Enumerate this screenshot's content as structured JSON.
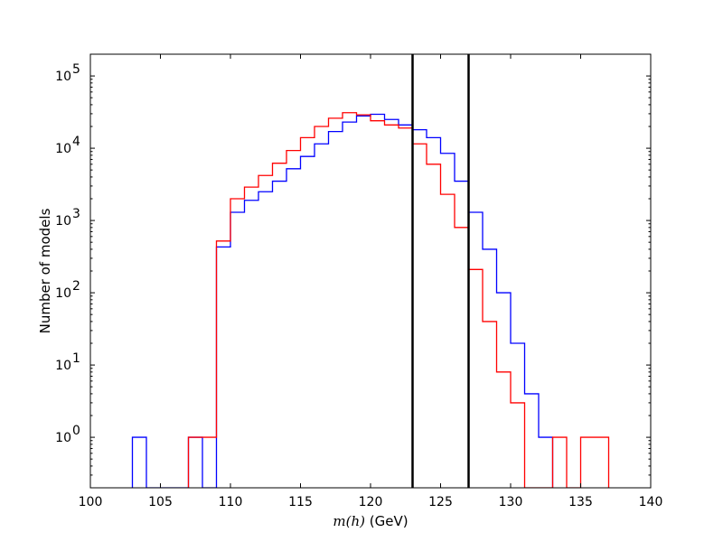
{
  "chart_data": {
    "type": "histogram",
    "xlabel_math": "m(h)",
    "xlabel_unit": " (GeV)",
    "ylabel": "Number of models",
    "xlim": [
      100,
      140
    ],
    "ylim": [
      0.2,
      200000
    ],
    "yscale": "log",
    "grid": false,
    "x_ticks": [
      100,
      105,
      110,
      115,
      120,
      125,
      130,
      135,
      140
    ],
    "y_ticks": [
      {
        "value": 1,
        "base": "10",
        "exp": "0"
      },
      {
        "value": 10,
        "base": "10",
        "exp": "1"
      },
      {
        "value": 100,
        "base": "10",
        "exp": "2"
      },
      {
        "value": 1000,
        "base": "10",
        "exp": "3"
      },
      {
        "value": 10000,
        "base": "10",
        "exp": "4"
      },
      {
        "value": 100000,
        "base": "10",
        "exp": "5"
      }
    ],
    "vlines": [
      123,
      127
    ],
    "series": [
      {
        "color": "#0000ff",
        "bins": [
          [
            103,
            104,
            1
          ],
          [
            104,
            107,
            0
          ],
          [
            107,
            108,
            1
          ],
          [
            108,
            109,
            0
          ],
          [
            109,
            110,
            430
          ],
          [
            110,
            111,
            1300
          ],
          [
            111,
            112,
            1900
          ],
          [
            112,
            113,
            2500
          ],
          [
            113,
            114,
            3500
          ],
          [
            114,
            115,
            5200
          ],
          [
            115,
            116,
            7700
          ],
          [
            116,
            117,
            11500
          ],
          [
            117,
            118,
            17000
          ],
          [
            118,
            119,
            23000
          ],
          [
            119,
            120,
            28000
          ],
          [
            120,
            121,
            29500
          ],
          [
            121,
            122,
            25000
          ],
          [
            122,
            123,
            21000
          ],
          [
            123,
            124,
            18000
          ],
          [
            124,
            125,
            14000
          ],
          [
            125,
            126,
            8500
          ],
          [
            126,
            127,
            3500
          ],
          [
            127,
            128,
            1300
          ],
          [
            128,
            129,
            400
          ],
          [
            129,
            130,
            100
          ],
          [
            130,
            131,
            20
          ],
          [
            131,
            132,
            4
          ],
          [
            132,
            133,
            1
          ]
        ]
      },
      {
        "color": "#ff0000",
        "bins": [
          [
            107,
            109,
            1
          ],
          [
            109,
            110,
            520
          ],
          [
            110,
            111,
            2000
          ],
          [
            111,
            112,
            2900
          ],
          [
            112,
            113,
            4200
          ],
          [
            113,
            114,
            6200
          ],
          [
            114,
            115,
            9300
          ],
          [
            115,
            116,
            14000
          ],
          [
            116,
            117,
            20000
          ],
          [
            117,
            118,
            26000
          ],
          [
            118,
            119,
            31000
          ],
          [
            119,
            120,
            29000
          ],
          [
            120,
            121,
            24000
          ],
          [
            121,
            122,
            21000
          ],
          [
            122,
            123,
            19000
          ],
          [
            123,
            124,
            11500
          ],
          [
            124,
            125,
            6000
          ],
          [
            125,
            126,
            2300
          ],
          [
            126,
            127,
            800
          ],
          [
            127,
            128,
            210
          ],
          [
            128,
            129,
            40
          ],
          [
            129,
            130,
            8
          ],
          [
            130,
            131,
            3
          ],
          [
            131,
            133,
            0
          ],
          [
            133,
            134,
            1
          ],
          [
            134,
            135,
            0
          ],
          [
            135,
            137,
            1
          ]
        ]
      }
    ]
  }
}
